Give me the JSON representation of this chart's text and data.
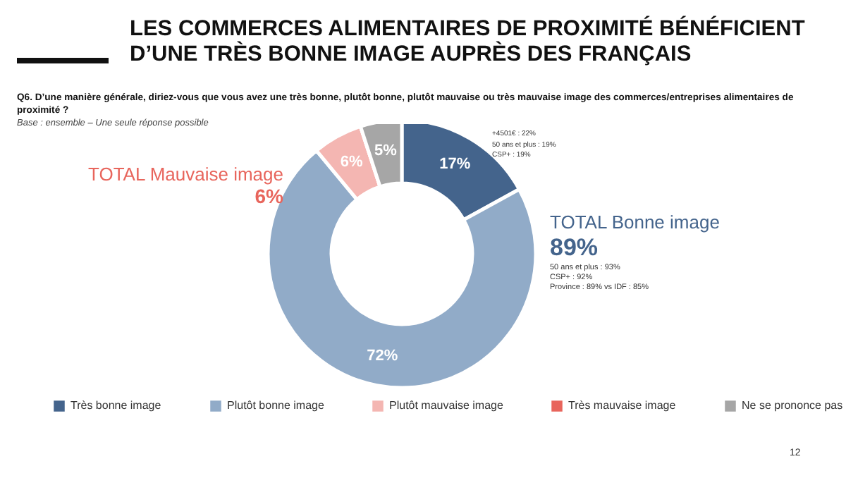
{
  "chart_data": {
    "type": "donut",
    "title": "LES COMMERCES ALIMENTAIRES DE PROXIMITÉ BÉNÉFICIENT D’UNE TRÈS BONNE IMAGE AUPRÈS DES FRANÇAIS",
    "subtitle": "Q6. D’une manière générale, diriez-vous que vous avez une très bonne, plutôt bonne, plutôt mauvaise ou très mauvaise image des commerces/entreprises alimentaires de proximité ?",
    "categories": [
      "Très bonne image",
      "Plutôt bonne image",
      "Plutôt mauvaise image",
      "Très mauvaise image",
      "Ne se prononce pas"
    ],
    "values": [
      17,
      72,
      6,
      0,
      5
    ],
    "value_labels": [
      "17%",
      "72%",
      "6%",
      null,
      "5%"
    ],
    "colors": [
      "#44648c",
      "#91abc8",
      "#f4b6b2",
      "#e8655c",
      "#a6a6a6"
    ],
    "legend": "bottom",
    "annotations": [
      "Base : ensemble – Une seule réponse possible",
      "+4501€ : 22%",
      "50 ans et plus : 19%",
      "CSP+ : 19%",
      "TOTAL Bonne image",
      "89%",
      "50 ans et plus : 93%",
      "CSP+ : 92%",
      "Province : 89% vs IDF : 85%",
      "TOTAL Mauvaise image",
      "6%",
      "12"
    ]
  }
}
